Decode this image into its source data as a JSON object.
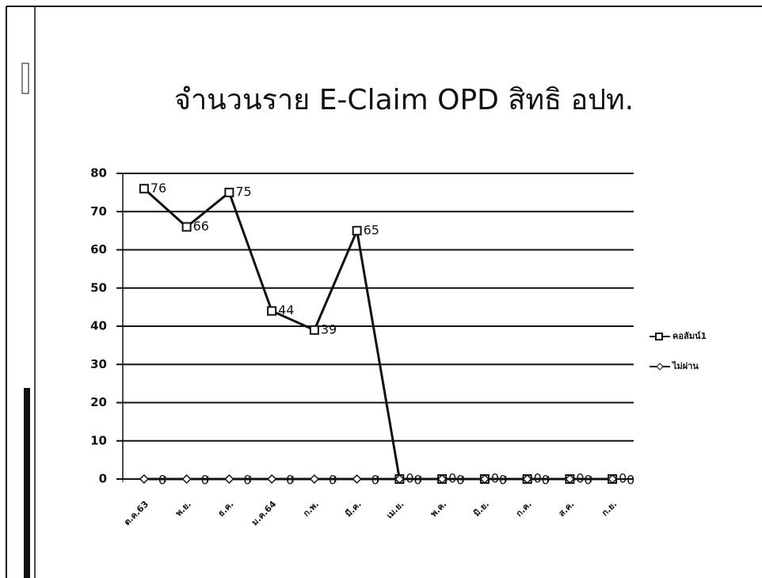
{
  "chart_data": {
    "type": "line",
    "title": "จำนวนราย E-Claim OPD สิทธิ อปท.",
    "categories": [
      "ต.ค.63",
      "พ.ย.",
      "ธ.ค.",
      "ม.ค.64",
      "ก.พ.",
      "มี.ค.",
      "เม.ย.",
      "พ.ค.",
      "มิ.ย.",
      "ก.ค.",
      "ส.ค.",
      "ก.ย."
    ],
    "series": [
      {
        "name": "คอลัมน์1",
        "color": "#111111",
        "values": [
          76,
          66,
          75,
          44,
          39,
          65,
          0,
          0,
          0,
          0,
          0,
          0
        ]
      },
      {
        "name": "ไม่ผ่าน",
        "color": "#111111",
        "values": [
          0,
          0,
          0,
          0,
          0,
          0,
          0,
          0,
          0,
          0,
          0,
          0
        ]
      }
    ],
    "ylim": [
      0,
      80
    ],
    "yticks": [
      0,
      10,
      20,
      30,
      40,
      50,
      60,
      70,
      80
    ],
    "grid": true,
    "legend": "right"
  }
}
